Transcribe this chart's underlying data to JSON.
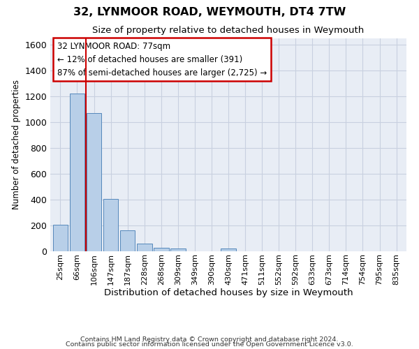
{
  "title": "32, LYNMOOR ROAD, WEYMOUTH, DT4 7TW",
  "subtitle": "Size of property relative to detached houses in Weymouth",
  "xlabel": "Distribution of detached houses by size in Weymouth",
  "ylabel": "Number of detached properties",
  "categories": [
    "25sqm",
    "66sqm",
    "106sqm",
    "147sqm",
    "187sqm",
    "228sqm",
    "268sqm",
    "309sqm",
    "349sqm",
    "390sqm",
    "430sqm",
    "471sqm",
    "511sqm",
    "552sqm",
    "592sqm",
    "633sqm",
    "673sqm",
    "714sqm",
    "754sqm",
    "795sqm",
    "835sqm"
  ],
  "values": [
    205,
    1220,
    1070,
    405,
    160,
    57,
    27,
    20,
    0,
    0,
    20,
    0,
    0,
    0,
    0,
    0,
    0,
    0,
    0,
    0,
    0
  ],
  "bar_color": "#b8cfe8",
  "bar_edge_color": "#5588bb",
  "ylim": [
    0,
    1650
  ],
  "yticks": [
    0,
    200,
    400,
    600,
    800,
    1000,
    1200,
    1400,
    1600
  ],
  "vline_x": 1.5,
  "vline_color": "#cc0000",
  "annotation_line1": "32 LYNMOOR ROAD: 77sqm",
  "annotation_line2": "← 12% of detached houses are smaller (391)",
  "annotation_line3": "87% of semi-detached houses are larger (2,725) →",
  "annotation_box_color": "#cc0000",
  "bg_color": "#e8edf5",
  "grid_color": "#c8d0e0",
  "footnote1": "Contains HM Land Registry data © Crown copyright and database right 2024.",
  "footnote2": "Contains public sector information licensed under the Open Government Licence v3.0."
}
